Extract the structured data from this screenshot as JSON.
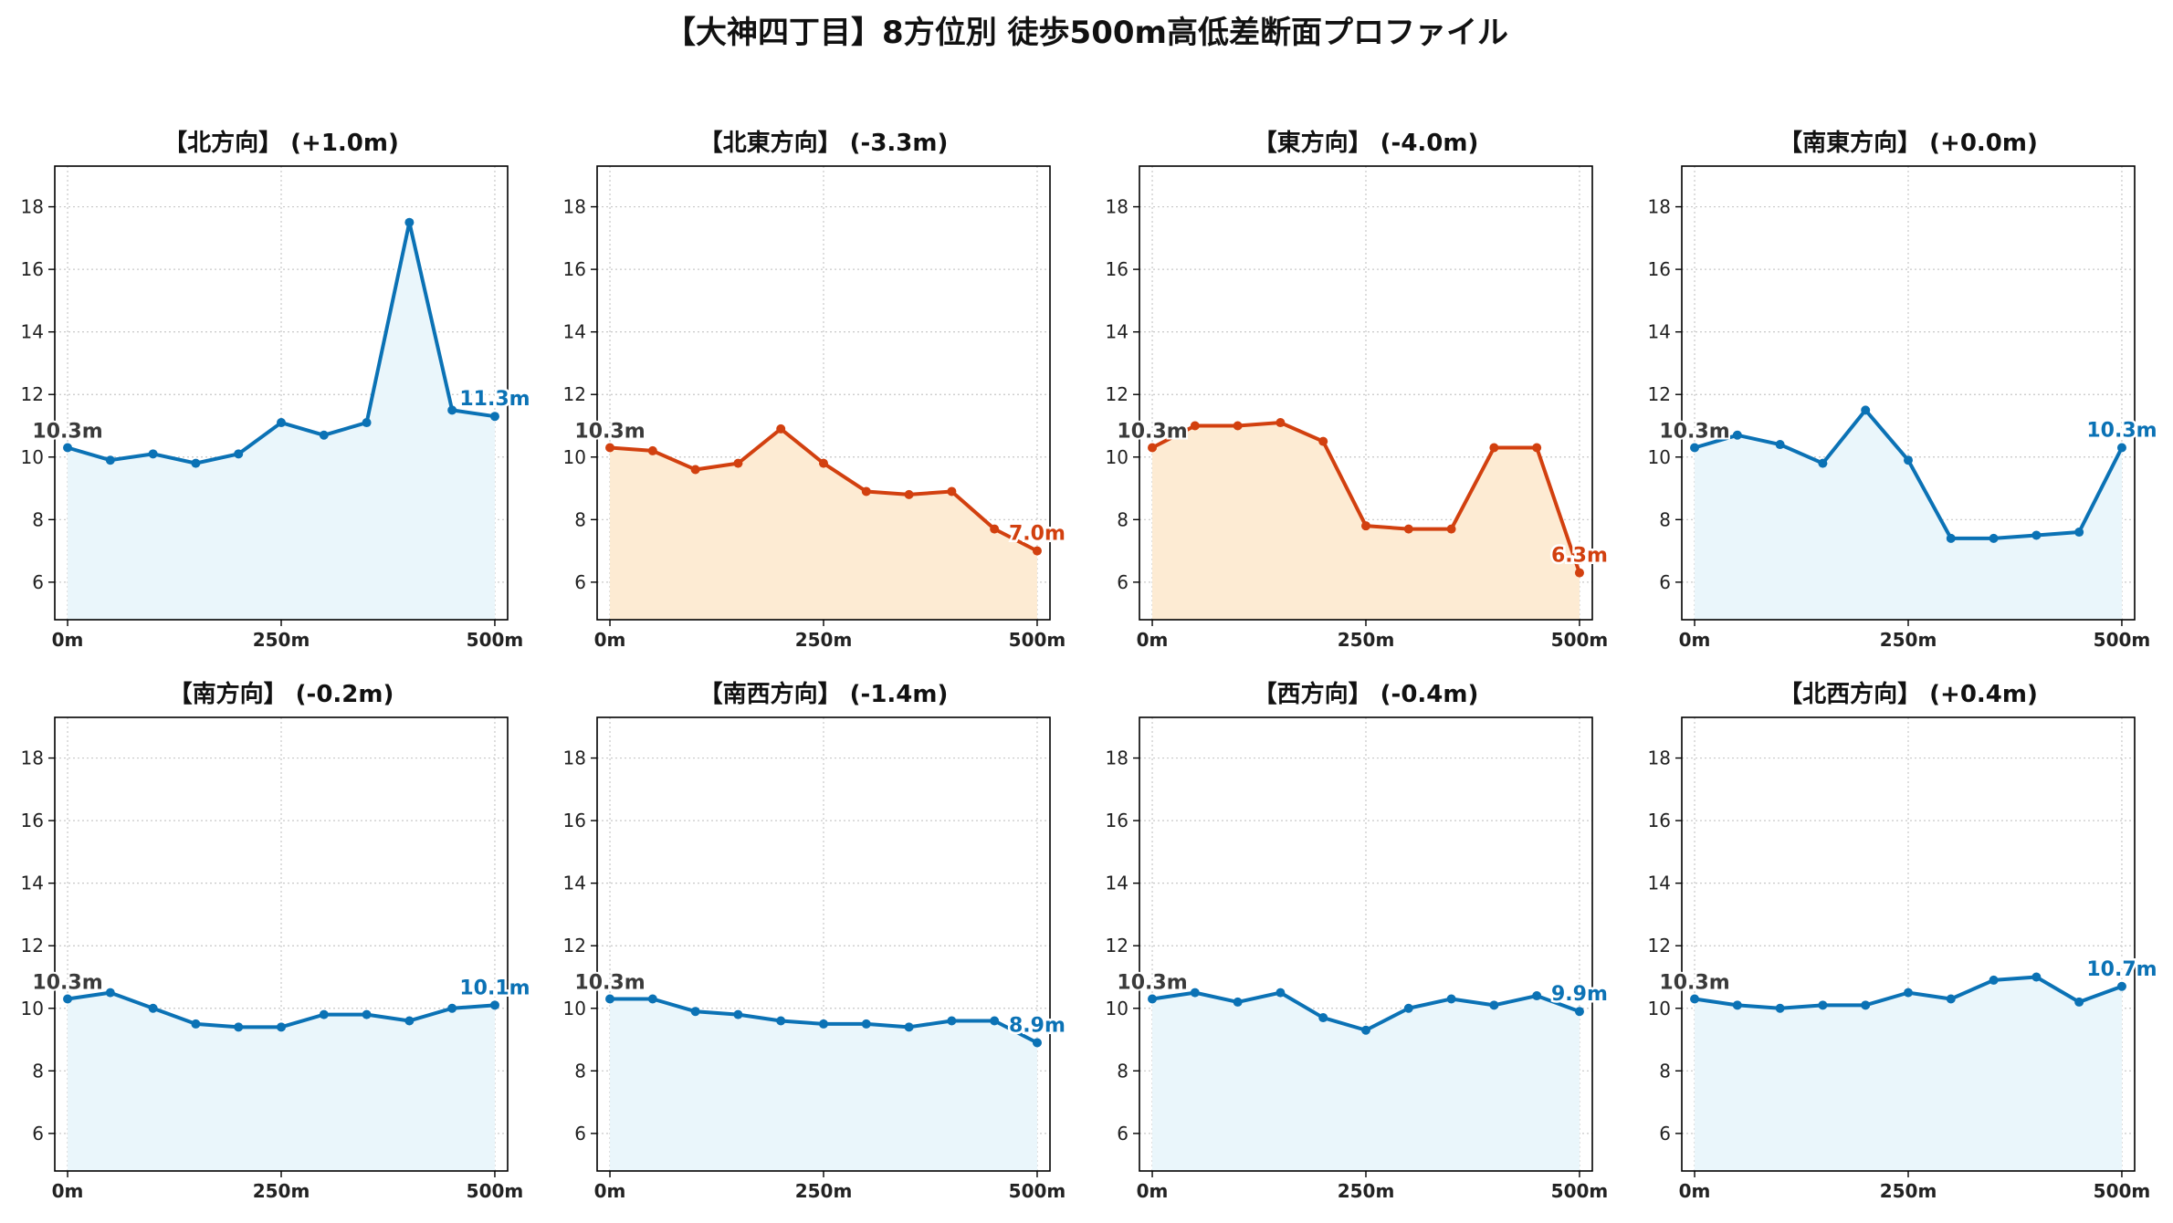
{
  "figure": {
    "title": "【大神四丁目】8方位別 徒歩500m高低差断面プロファイル"
  },
  "colors": {
    "up": "#0B72B5",
    "up_fill": "#EAF6FB",
    "down": "#D2400F",
    "down_fill": "#FDEBD3",
    "start_label": "#3A3A3A",
    "grid": "#C8C8C8"
  },
  "chart_data": [
    {
      "type": "area",
      "title": "【北方向】 (+1.0m)",
      "x": [
        0,
        50,
        100,
        150,
        200,
        250,
        300,
        350,
        400,
        450,
        500
      ],
      "y": [
        10.3,
        9.9,
        10.1,
        9.8,
        10.1,
        11.1,
        10.7,
        11.1,
        17.5,
        11.5,
        11.3
      ],
      "start_label": "10.3m",
      "end_label": "11.3m",
      "trend": "up",
      "xticks": [
        "0m",
        "250m",
        "500m"
      ],
      "yticks": [
        6,
        8,
        10,
        12,
        14,
        16,
        18
      ],
      "ylim": [
        4.8,
        19.3
      ],
      "xlim": [
        -15,
        515
      ],
      "grid": true
    },
    {
      "type": "area",
      "title": "【北東方向】 (-3.3m)",
      "x": [
        0,
        50,
        100,
        150,
        200,
        250,
        300,
        350,
        400,
        450,
        500
      ],
      "y": [
        10.3,
        10.2,
        9.6,
        9.8,
        10.9,
        9.8,
        8.9,
        8.8,
        8.9,
        7.7,
        7.0
      ],
      "start_label": "10.3m",
      "end_label": "7.0m",
      "trend": "down",
      "xticks": [
        "0m",
        "250m",
        "500m"
      ],
      "yticks": [
        6,
        8,
        10,
        12,
        14,
        16,
        18
      ],
      "ylim": [
        4.8,
        19.3
      ],
      "xlim": [
        -15,
        515
      ],
      "grid": true
    },
    {
      "type": "area",
      "title": "【東方向】 (-4.0m)",
      "x": [
        0,
        50,
        100,
        150,
        200,
        250,
        300,
        350,
        400,
        450,
        500
      ],
      "y": [
        10.3,
        11.0,
        11.0,
        11.1,
        10.5,
        7.8,
        7.7,
        7.7,
        10.3,
        10.3,
        6.3
      ],
      "start_label": "10.3m",
      "end_label": "6.3m",
      "trend": "down",
      "xticks": [
        "0m",
        "250m",
        "500m"
      ],
      "yticks": [
        6,
        8,
        10,
        12,
        14,
        16,
        18
      ],
      "ylim": [
        4.8,
        19.3
      ],
      "xlim": [
        -15,
        515
      ],
      "grid": true
    },
    {
      "type": "area",
      "title": "【南東方向】 (+0.0m)",
      "x": [
        0,
        50,
        100,
        150,
        200,
        250,
        300,
        350,
        400,
        450,
        500
      ],
      "y": [
        10.3,
        10.7,
        10.4,
        9.8,
        11.5,
        9.9,
        7.4,
        7.4,
        7.5,
        7.6,
        10.3
      ],
      "start_label": "10.3m",
      "end_label": "10.3m",
      "trend": "up",
      "xticks": [
        "0m",
        "250m",
        "500m"
      ],
      "yticks": [
        6,
        8,
        10,
        12,
        14,
        16,
        18
      ],
      "ylim": [
        4.8,
        19.3
      ],
      "xlim": [
        -15,
        515
      ],
      "grid": true
    },
    {
      "type": "area",
      "title": "【南方向】 (-0.2m)",
      "x": [
        0,
        50,
        100,
        150,
        200,
        250,
        300,
        350,
        400,
        450,
        500
      ],
      "y": [
        10.3,
        10.5,
        10.0,
        9.5,
        9.4,
        9.4,
        9.8,
        9.8,
        9.6,
        10.0,
        10.1
      ],
      "start_label": "10.3m",
      "end_label": "10.1m",
      "trend": "up",
      "xticks": [
        "0m",
        "250m",
        "500m"
      ],
      "yticks": [
        6,
        8,
        10,
        12,
        14,
        16,
        18
      ],
      "ylim": [
        4.8,
        19.3
      ],
      "xlim": [
        -15,
        515
      ],
      "grid": true
    },
    {
      "type": "area",
      "title": "【南西方向】 (-1.4m)",
      "x": [
        0,
        50,
        100,
        150,
        200,
        250,
        300,
        350,
        400,
        450,
        500
      ],
      "y": [
        10.3,
        10.3,
        9.9,
        9.8,
        9.6,
        9.5,
        9.5,
        9.4,
        9.6,
        9.6,
        8.9
      ],
      "start_label": "10.3m",
      "end_label": "8.9m",
      "trend": "up",
      "xticks": [
        "0m",
        "250m",
        "500m"
      ],
      "yticks": [
        6,
        8,
        10,
        12,
        14,
        16,
        18
      ],
      "ylim": [
        4.8,
        19.3
      ],
      "xlim": [
        -15,
        515
      ],
      "grid": true
    },
    {
      "type": "area",
      "title": "【西方向】 (-0.4m)",
      "x": [
        0,
        50,
        100,
        150,
        200,
        250,
        300,
        350,
        400,
        450,
        500
      ],
      "y": [
        10.3,
        10.5,
        10.2,
        10.5,
        9.7,
        9.3,
        10.0,
        10.3,
        10.1,
        10.4,
        9.9
      ],
      "start_label": "10.3m",
      "end_label": "9.9m",
      "trend": "up",
      "xticks": [
        "0m",
        "250m",
        "500m"
      ],
      "yticks": [
        6,
        8,
        10,
        12,
        14,
        16,
        18
      ],
      "ylim": [
        4.8,
        19.3
      ],
      "xlim": [
        -15,
        515
      ],
      "grid": true
    },
    {
      "type": "area",
      "title": "【北西方向】 (+0.4m)",
      "x": [
        0,
        50,
        100,
        150,
        200,
        250,
        300,
        350,
        400,
        450,
        500
      ],
      "y": [
        10.3,
        10.1,
        10.0,
        10.1,
        10.1,
        10.5,
        10.3,
        10.9,
        11.0,
        10.2,
        10.7
      ],
      "start_label": "10.3m",
      "end_label": "10.7m",
      "trend": "up",
      "xticks": [
        "0m",
        "250m",
        "500m"
      ],
      "yticks": [
        6,
        8,
        10,
        12,
        14,
        16,
        18
      ],
      "ylim": [
        4.8,
        19.3
      ],
      "xlim": [
        -15,
        515
      ],
      "grid": true
    }
  ]
}
